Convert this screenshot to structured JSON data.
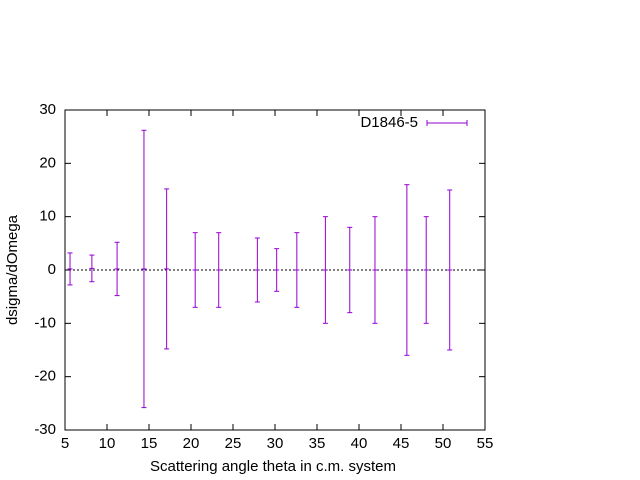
{
  "chart_data": {
    "type": "errorbar",
    "xlabel": "Scattering angle theta in c.m. system",
    "ylabel": "dsigma/dOmega",
    "x": [
      5.6,
      8.2,
      11.2,
      14.4,
      17.1,
      20.5,
      23.3,
      27.9,
      30.2,
      32.6,
      36.0,
      38.9,
      41.9,
      45.7,
      48.0,
      50.8
    ],
    "series": [
      {
        "name": "D1846-5",
        "color": "#9400d3",
        "values": [
          0.2,
          0.3,
          0.2,
          0.2,
          0.2,
          0,
          0,
          0,
          0,
          0,
          0,
          0,
          0,
          0,
          0,
          0
        ],
        "errors": [
          3,
          2.5,
          5,
          26,
          15,
          7,
          7,
          6,
          4,
          7,
          10,
          8,
          10,
          16,
          10,
          15
        ]
      }
    ],
    "xlim": [
      5,
      55
    ],
    "xticks": [
      5,
      10,
      15,
      20,
      25,
      30,
      35,
      40,
      45,
      50,
      55
    ],
    "ylim": [
      -30,
      30
    ],
    "yticks": [
      -30,
      -20,
      -10,
      0,
      10,
      20,
      30
    ],
    "zeroaxis": true,
    "legend": "top-right"
  }
}
